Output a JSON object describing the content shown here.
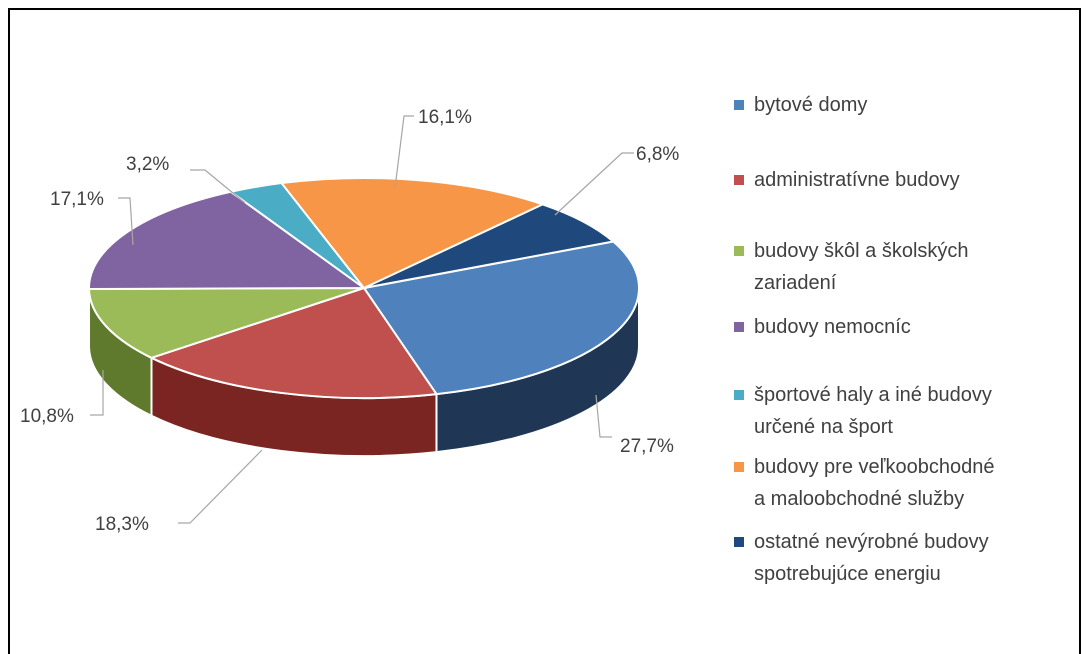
{
  "chart_data": {
    "type": "pie",
    "title": "",
    "slices": [
      {
        "label": "bytové domy",
        "value": 27.7,
        "value_label": "27,7%",
        "color": "#4f81bd",
        "side_color": "#1f3654"
      },
      {
        "label": "administratívne budovy",
        "value": 18.3,
        "value_label": "18,3%",
        "color": "#c0504d",
        "side_color": "#7a2522"
      },
      {
        "label": "budovy škôl a školských zariadení",
        "value": 10.8,
        "value_label": "10,8%",
        "color": "#9bbb59",
        "side_color": "#5f7a2c"
      },
      {
        "label": "budovy nemocníc",
        "value": 17.1,
        "value_label": "17,1%",
        "color": "#8064a2",
        "side_color": "#4b3566"
      },
      {
        "label": "športové haly a iné budovy určené na šport",
        "value": 3.2,
        "value_label": "3,2%",
        "color": "#4bacc6",
        "side_color": "#1f6a7e"
      },
      {
        "label": "budovy pre veľkoobchodné a maloobchodné služby",
        "value": 16.1,
        "value_label": "16,1%",
        "color": "#f79646",
        "side_color": "#a75a18"
      },
      {
        "label": "ostatné nevýrobné budovy spotrebujúce energiu",
        "value": 6.8,
        "value_label": "6,8%",
        "color": "#1f497d",
        "side_color": "#0e2340"
      }
    ],
    "legend": {
      "position": "right",
      "lines": [
        [
          "bytové domy"
        ],
        [
          "administratívne budovy"
        ],
        [
          "budovy škôl a školských",
          "zariadení"
        ],
        [
          "budovy nemocníc"
        ],
        [
          "športové haly a iné budovy",
          "určené na šport"
        ],
        [
          "budovy pre veľkoobchodné",
          "a maloobchodné služby"
        ],
        [
          "ostatné nevýrobné budovy",
          "spotrebujúce energiu"
        ]
      ]
    },
    "style": "3d"
  }
}
